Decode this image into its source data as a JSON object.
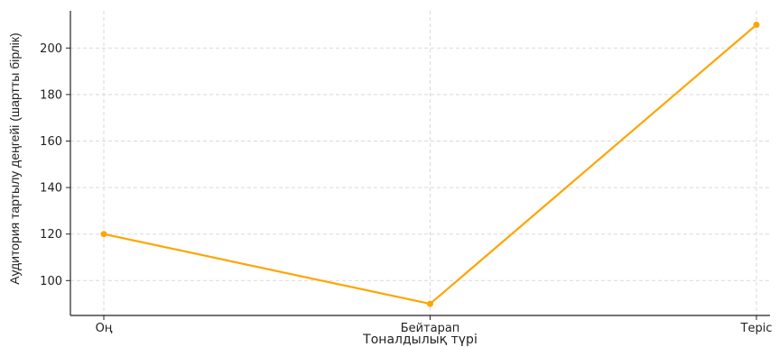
{
  "chart_data": {
    "type": "line",
    "categories": [
      "Оң",
      "Бейтарап",
      "Теріс"
    ],
    "series": [
      {
        "values": [
          120,
          90,
          210
        ]
      }
    ],
    "xlabel": "Тоналдылық түрі",
    "ylabel": "Аудитория тартылу деңгейі (шартты бірлік)",
    "yticks": [
      100,
      120,
      140,
      160,
      180,
      200
    ],
    "ylim": [
      85,
      216
    ],
    "grid": true,
    "colors": {
      "line": "#FFA500",
      "grid": "#d9d9d9",
      "axis": "#222222"
    }
  }
}
